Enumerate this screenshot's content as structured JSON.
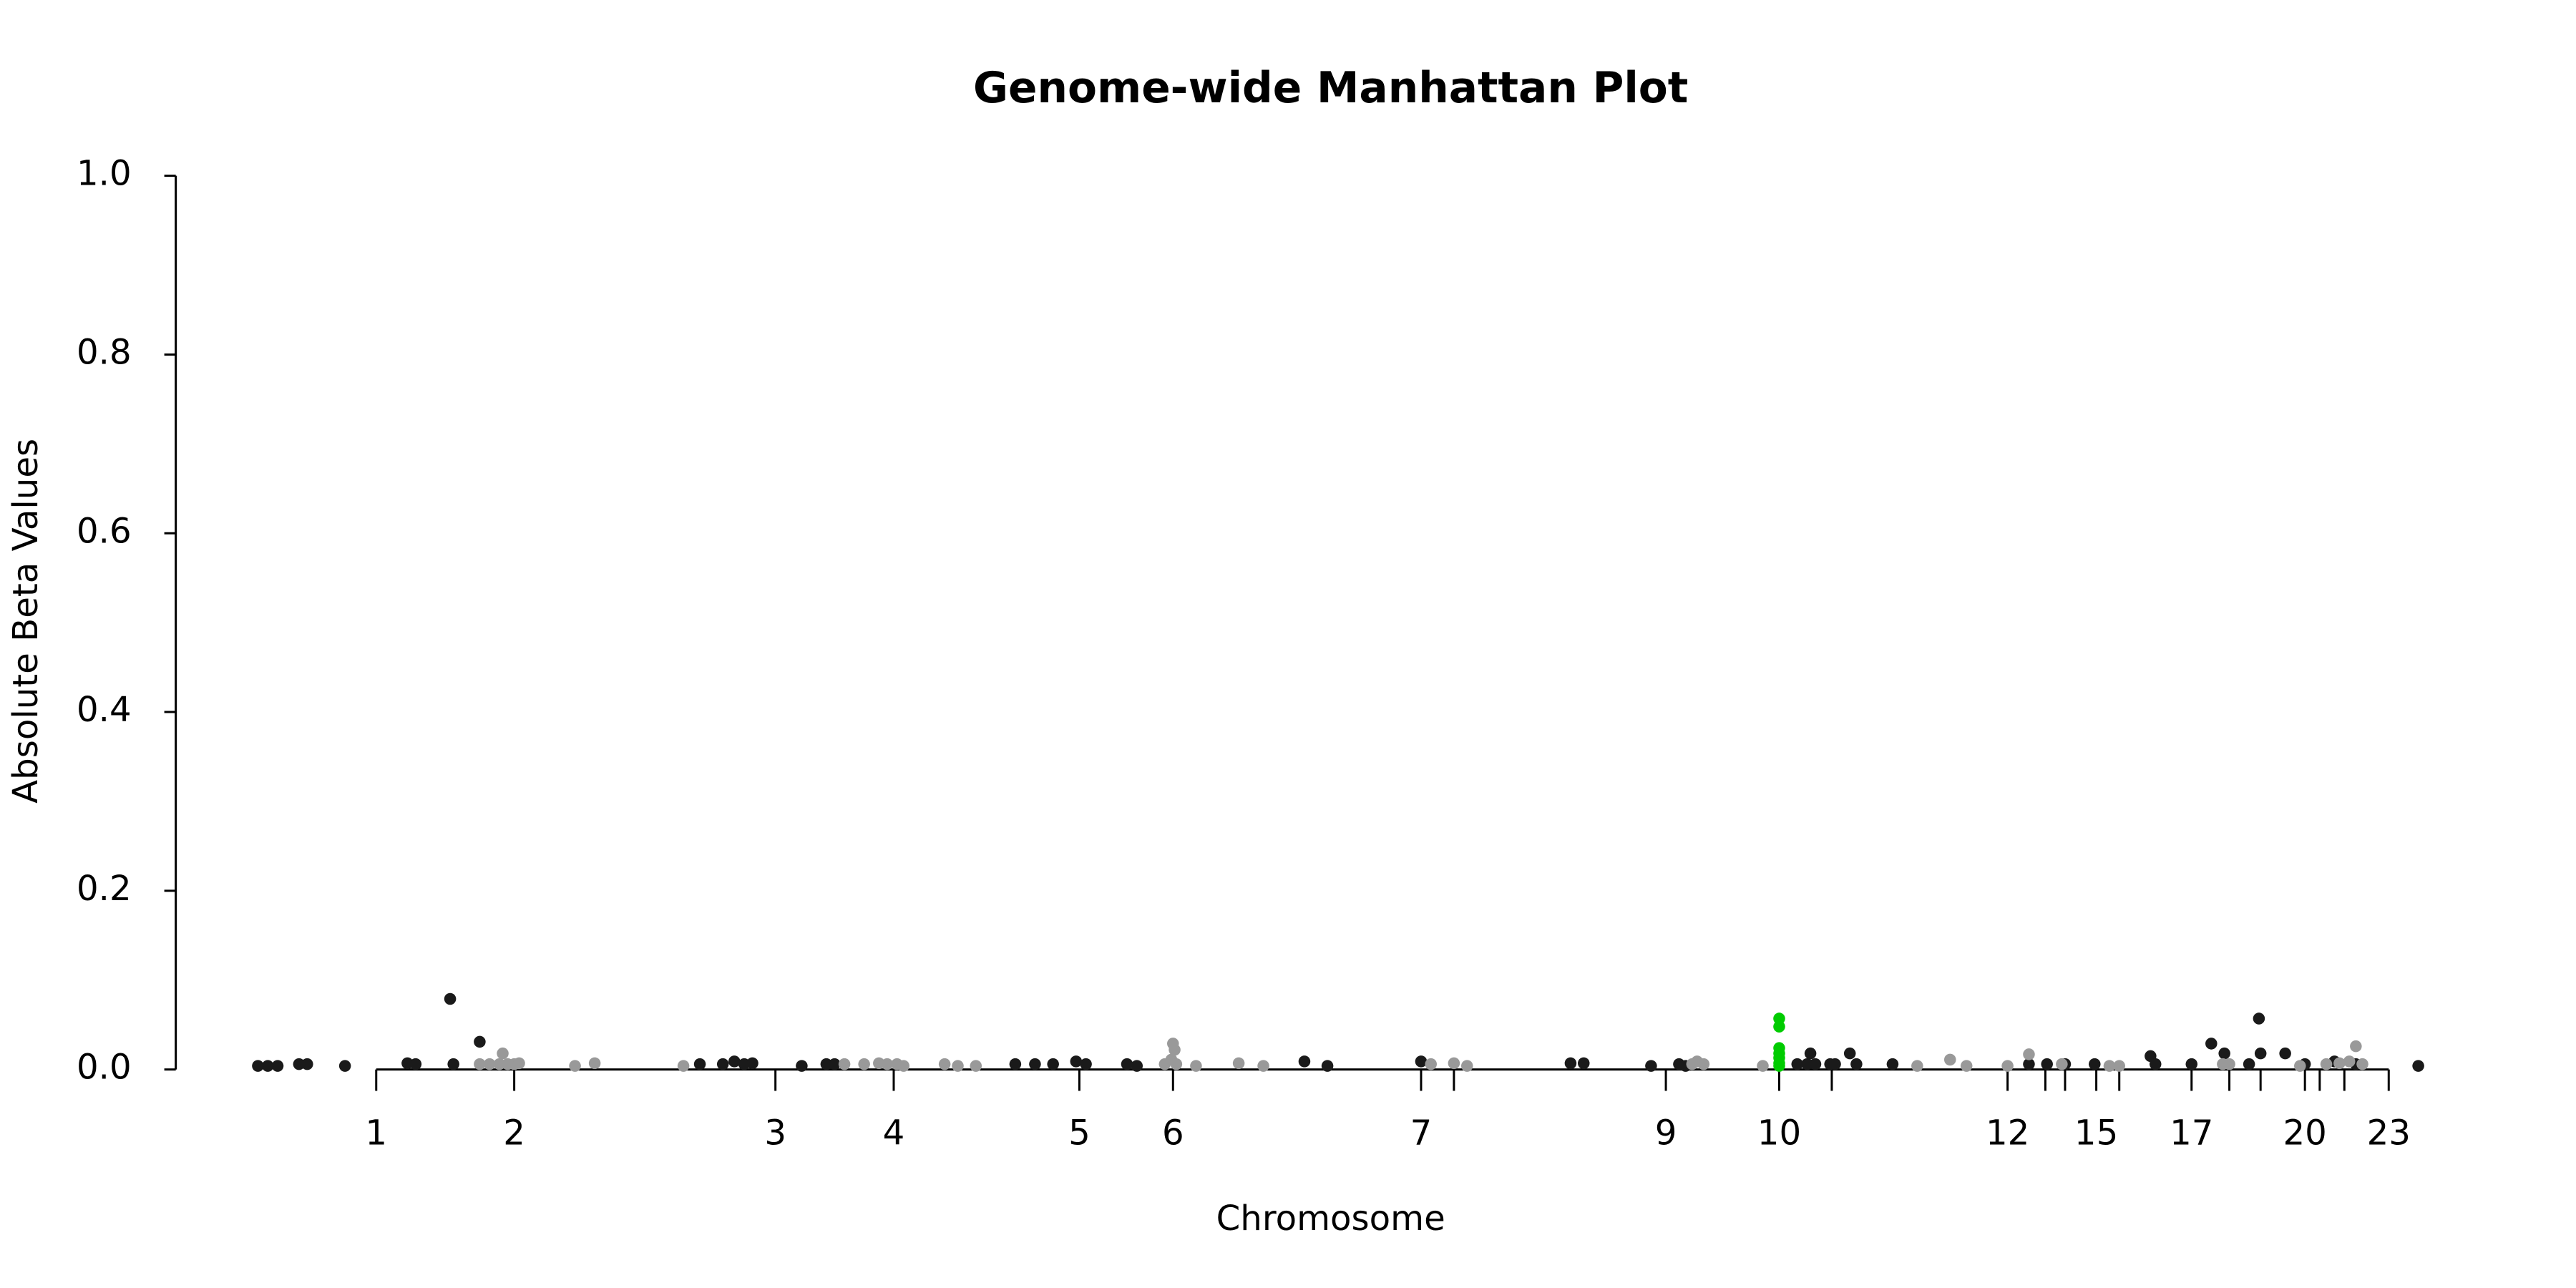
{
  "chart_data": {
    "type": "scatter",
    "title": "Genome-wide Manhattan Plot",
    "x_label": "Chromosome",
    "y_label": "Absolute Beta Values",
    "xlim": [
      0,
      1373
    ],
    "ylim": [
      0,
      1
    ],
    "yticks": [
      {
        "value": 0,
        "label": "0.0"
      },
      {
        "value": 0.2,
        "label": "0.2"
      },
      {
        "value": 0.4,
        "label": "0.4"
      },
      {
        "value": 0.6,
        "label": "0.6"
      },
      {
        "value": 0.8,
        "label": "0.8"
      },
      {
        "value": 1,
        "label": "1.0"
      }
    ],
    "xticks": [
      {
        "value": 122,
        "label": "1"
      },
      {
        "value": 206,
        "label": "2"
      },
      {
        "value": 365,
        "label": "3"
      },
      {
        "value": 437,
        "label": "4"
      },
      {
        "value": 550,
        "label": "5"
      },
      {
        "value": 607,
        "label": "6"
      },
      {
        "value": 758,
        "label": "7"
      },
      {
        "value": 778,
        "label": null
      },
      {
        "value": 907,
        "label": "9"
      },
      {
        "value": 976,
        "label": "10"
      },
      {
        "value": 1008,
        "label": null
      },
      {
        "value": 1115,
        "label": "12"
      },
      {
        "value": 1138,
        "label": null
      },
      {
        "value": 1150,
        "label": null
      },
      {
        "value": 1169,
        "label": "15"
      },
      {
        "value": 1183,
        "label": null
      },
      {
        "value": 1227,
        "label": "17"
      },
      {
        "value": 1250,
        "label": null
      },
      {
        "value": 1269,
        "label": null
      },
      {
        "value": 1296,
        "label": "20"
      },
      {
        "value": 1305,
        "label": null
      },
      {
        "value": 1320,
        "label": null
      },
      {
        "value": 1347,
        "label": "23"
      }
    ],
    "series": [
      {
        "color": "#1a1a1a",
        "x": [
          50,
          56,
          62,
          75,
          80,
          103,
          141,
          146,
          167,
          169,
          185,
          319,
          333,
          340,
          346,
          351,
          381,
          396,
          401,
          511,
          523,
          534,
          548,
          554,
          579,
          585,
          687,
          701,
          758,
          849,
          857,
          898,
          915,
          919,
          987,
          993,
          995,
          998,
          1007,
          1010,
          1019,
          1023,
          1045,
          1128,
          1139,
          1150,
          1168,
          1202,
          1205,
          1227,
          1239,
          1247,
          1262,
          1268,
          1269,
          1284,
          1296,
          1314,
          1327,
          1365
        ],
        "values": [
          0.004,
          0.004,
          0.004,
          0.006,
          0.006,
          0.004,
          0.007,
          0.006,
          0.079,
          0.006,
          0.031,
          0.006,
          0.006,
          0.009,
          0.006,
          0.007,
          0.004,
          0.006,
          0.006,
          0.006,
          0.006,
          0.006,
          0.009,
          0.006,
          0.006,
          0.004,
          0.009,
          0.004,
          0.009,
          0.007,
          0.007,
          0.004,
          0.006,
          0.004,
          0.006,
          0.006,
          0.018,
          0.006,
          0.006,
          0.006,
          0.018,
          0.006,
          0.006,
          0.006,
          0.006,
          0.006,
          0.006,
          0.015,
          0.006,
          0.006,
          0.029,
          0.018,
          0.006,
          0.057,
          0.018,
          0.018,
          0.006,
          0.009,
          0.006,
          0.004
        ]
      },
      {
        "color": "#999999",
        "x": [
          185,
          191,
          197,
          199,
          202,
          206,
          209,
          243,
          255,
          309,
          407,
          419,
          428,
          433,
          439,
          443,
          468,
          476,
          487,
          602,
          606,
          607,
          608,
          609,
          621,
          647,
          662,
          764,
          778,
          786,
          923,
          926,
          930,
          966,
          1060,
          1080,
          1090,
          1115,
          1128,
          1148,
          1177,
          1183,
          1246,
          1250,
          1293,
          1309,
          1317,
          1323,
          1327,
          1331
        ],
        "values": [
          0.006,
          0.006,
          0.006,
          0.018,
          0.006,
          0.006,
          0.007,
          0.004,
          0.007,
          0.004,
          0.006,
          0.006,
          0.007,
          0.006,
          0.006,
          0.004,
          0.006,
          0.004,
          0.004,
          0.006,
          0.011,
          0.029,
          0.022,
          0.006,
          0.004,
          0.007,
          0.004,
          0.006,
          0.007,
          0.004,
          0.006,
          0.009,
          0.006,
          0.004,
          0.004,
          0.011,
          0.004,
          0.004,
          0.017,
          0.006,
          0.004,
          0.004,
          0.006,
          0.006,
          0.004,
          0.006,
          0.007,
          0.009,
          0.026,
          0.006
        ]
      },
      {
        "color": "#00cc00",
        "x": [
          976,
          976,
          976,
          976,
          976,
          976,
          976
        ],
        "values": [
          0.057,
          0.048,
          0.024,
          0.018,
          0.013,
          0.007,
          0.004
        ]
      }
    ]
  }
}
